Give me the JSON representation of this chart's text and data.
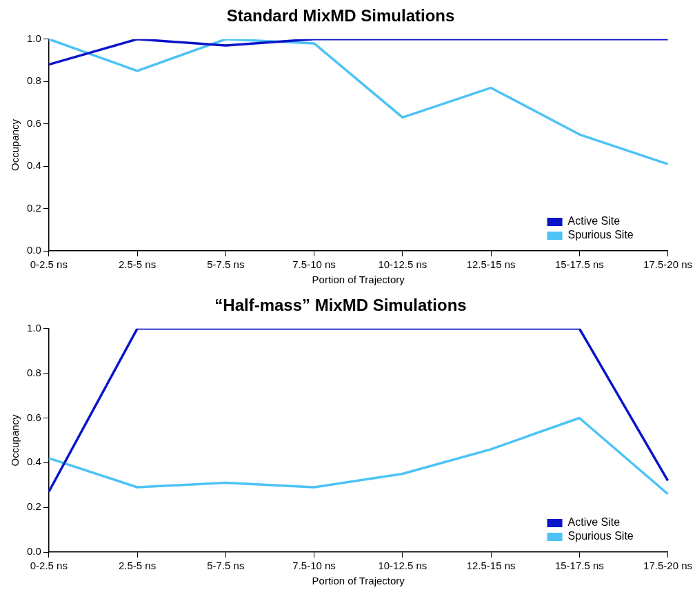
{
  "chart_data": [
    {
      "type": "line",
      "title": "Standard MixMD Simulations",
      "xlabel": "Portion of Trajectory",
      "ylabel": "Occupancy",
      "categories": [
        "0-2.5 ns",
        "2.5-5 ns",
        "5-7.5 ns",
        "7.5-10 ns",
        "10-12.5 ns",
        "12.5-15 ns",
        "15-17.5 ns",
        "17.5-20 ns"
      ],
      "series": [
        {
          "name": "Active Site",
          "color": "#0a14c8",
          "values": [
            0.88,
            1.0,
            0.97,
            1.0,
            1.0,
            1.0,
            1.0,
            1.0
          ]
        },
        {
          "name": "Spurious Site",
          "color": "#4dc3f5",
          "values": [
            1.0,
            0.85,
            1.0,
            0.98,
            0.63,
            0.77,
            0.55,
            0.41
          ]
        }
      ],
      "ylim": [
        0,
        1.0
      ],
      "yticks": [
        {
          "value": 0,
          "label": "0.0"
        },
        {
          "value": 0.2,
          "label": "0.2"
        },
        {
          "value": 0.4,
          "label": "0.4"
        },
        {
          "value": 0.6,
          "label": "0.6"
        },
        {
          "value": 0.8,
          "label": "0.8"
        },
        {
          "value": 1.0,
          "label": "1.0"
        }
      ],
      "grid": false,
      "legend": "bottom right",
      "marker": "none"
    },
    {
      "type": "line",
      "title": "“Half-mass” MixMD Simulations",
      "xlabel": "Portion of Trajectory",
      "ylabel": "Occupancy",
      "categories": [
        "0-2.5 ns",
        "2.5-5 ns",
        "5-7.5 ns",
        "7.5-10 ns",
        "10-12.5 ns",
        "12.5-15 ns",
        "15-17.5 ns",
        "17.5-20 ns"
      ],
      "series": [
        {
          "name": "Active Site",
          "color": "#0a14c8",
          "values": [
            0.27,
            1.0,
            1.0,
            1.0,
            1.0,
            1.0,
            1.0,
            0.32
          ]
        },
        {
          "name": "Spurious Site",
          "color": "#4dc3f5",
          "values": [
            0.42,
            0.29,
            0.31,
            0.29,
            0.35,
            0.46,
            0.6,
            0.26
          ]
        }
      ],
      "ylim": [
        0,
        1.0
      ],
      "yticks": [
        {
          "value": 0,
          "label": "0.0"
        },
        {
          "value": 0.2,
          "label": "0.2"
        },
        {
          "value": 0.4,
          "label": "0.4"
        },
        {
          "value": 0.6,
          "label": "0.6"
        },
        {
          "value": 0.8,
          "label": "0.8"
        },
        {
          "value": 1.0,
          "label": "1.0"
        }
      ],
      "grid": false,
      "legend": "bottom right",
      "marker": "none"
    }
  ]
}
